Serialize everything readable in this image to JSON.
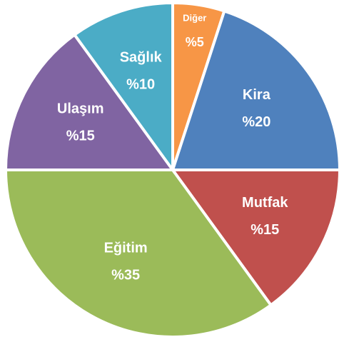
{
  "chart_data": {
    "type": "pie",
    "categories": [
      "Diğer",
      "Kira",
      "Mutfak",
      "Eğitim",
      "Ulaşım",
      "Sağlık"
    ],
    "values": [
      5,
      20,
      15,
      35,
      15,
      10
    ],
    "value_labels": [
      "%5",
      "%20",
      "%15",
      "%35",
      "%15",
      "%10"
    ],
    "colors": [
      "#f79646",
      "#4f81bd",
      "#c0504d",
      "#9bbb59",
      "#8064a2",
      "#4bacc6"
    ]
  }
}
